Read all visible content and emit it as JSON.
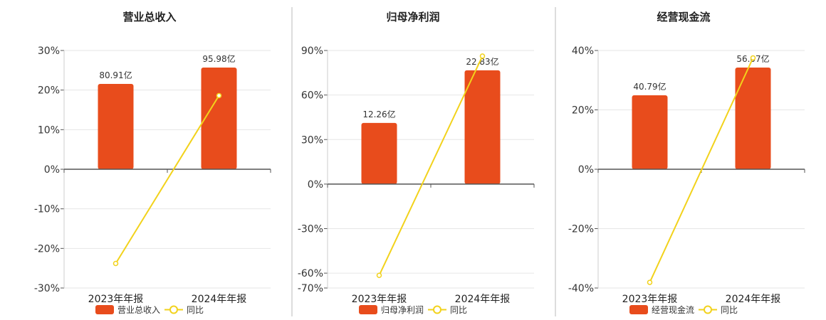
{
  "legend_yoy": "同比",
  "colors": {
    "bar": "#e84c1c",
    "line": "#f2d21b",
    "axis": "#555555",
    "grid": "#e6e6e6",
    "divider": "#bbbbbb"
  },
  "chart_data": [
    {
      "type": "bar",
      "title": "营业总收入",
      "categories": [
        "2023年年报",
        "2024年年报"
      ],
      "bar_labels": [
        "80.91亿",
        "95.98亿"
      ],
      "yoy": [
        -23.8,
        18.6
      ],
      "ylim": [
        -30,
        30
      ],
      "yticks": [
        -30,
        -20,
        -10,
        0,
        10,
        20,
        30
      ],
      "ytick_labels": [
        "-30%",
        "-20%",
        "-10%",
        "0%",
        "10%",
        "20%",
        "30%"
      ],
      "legend_bar": "营业总收入"
    },
    {
      "type": "bar",
      "title": "归母净利润",
      "categories": [
        "2023年年报",
        "2024年年报"
      ],
      "bar_labels": [
        "12.26亿",
        "22.83亿"
      ],
      "yoy": [
        -61.5,
        86.2
      ],
      "ylim": [
        -70,
        90
      ],
      "yticks": [
        -70,
        -60,
        -30,
        0,
        30,
        60,
        90
      ],
      "ytick_labels": [
        "-70%",
        "-60%",
        "-30%",
        "0%",
        "30%",
        "60%",
        "90%"
      ],
      "legend_bar": "归母净利润"
    },
    {
      "type": "bar",
      "title": "经营现金流",
      "categories": [
        "2023年年报",
        "2024年年报"
      ],
      "bar_labels": [
        "40.79亿",
        "56.07亿"
      ],
      "yoy": [
        -38.1,
        37.5
      ],
      "ylim": [
        -40,
        40
      ],
      "yticks": [
        -40,
        -20,
        0,
        20,
        40
      ],
      "ytick_labels": [
        "-40%",
        "-20%",
        "0%",
        "20%",
        "40%"
      ],
      "legend_bar": "经营现金流"
    }
  ]
}
